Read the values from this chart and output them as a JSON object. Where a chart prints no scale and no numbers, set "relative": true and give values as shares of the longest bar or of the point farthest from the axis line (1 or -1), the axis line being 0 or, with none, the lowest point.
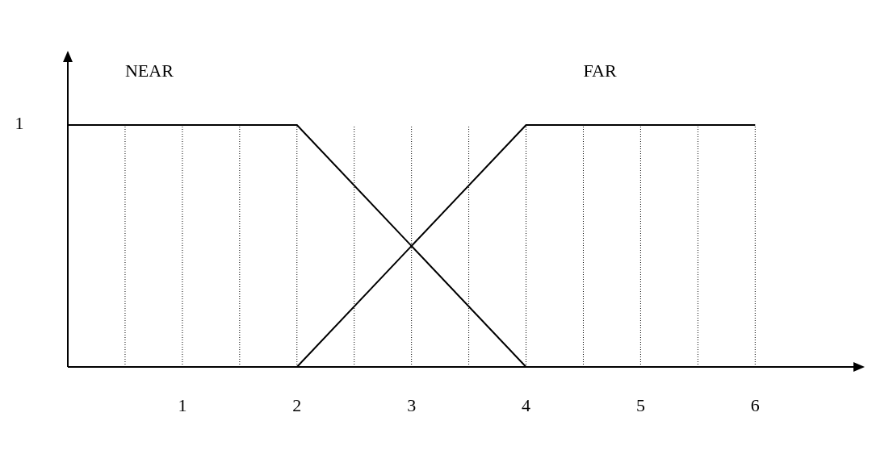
{
  "chart_data": {
    "type": "line",
    "x": [
      0,
      2,
      4,
      6
    ],
    "relative": true,
    "series": [
      {
        "name": "NEAR",
        "color": "#000000",
        "values": [
          1,
          1,
          0,
          null
        ]
      },
      {
        "name": "FAR",
        "color": "#000000",
        "values": [
          null,
          0,
          1,
          1
        ]
      }
    ],
    "xlim": [
      0,
      6.9
    ],
    "xticks": [
      {
        "value": 0.5,
        "label": null
      },
      1,
      {
        "value": 1.5,
        "label": null
      },
      2,
      {
        "value": 2.5,
        "label": null
      },
      3,
      {
        "value": 3.5,
        "label": null
      },
      4,
      {
        "value": 4.5,
        "label": null
      },
      5,
      {
        "value": 5.5,
        "label": null
      },
      6
    ],
    "annotations": [
      "1"
    ],
    "grid": "x",
    "marker": "none",
    "line_style": "solid"
  }
}
